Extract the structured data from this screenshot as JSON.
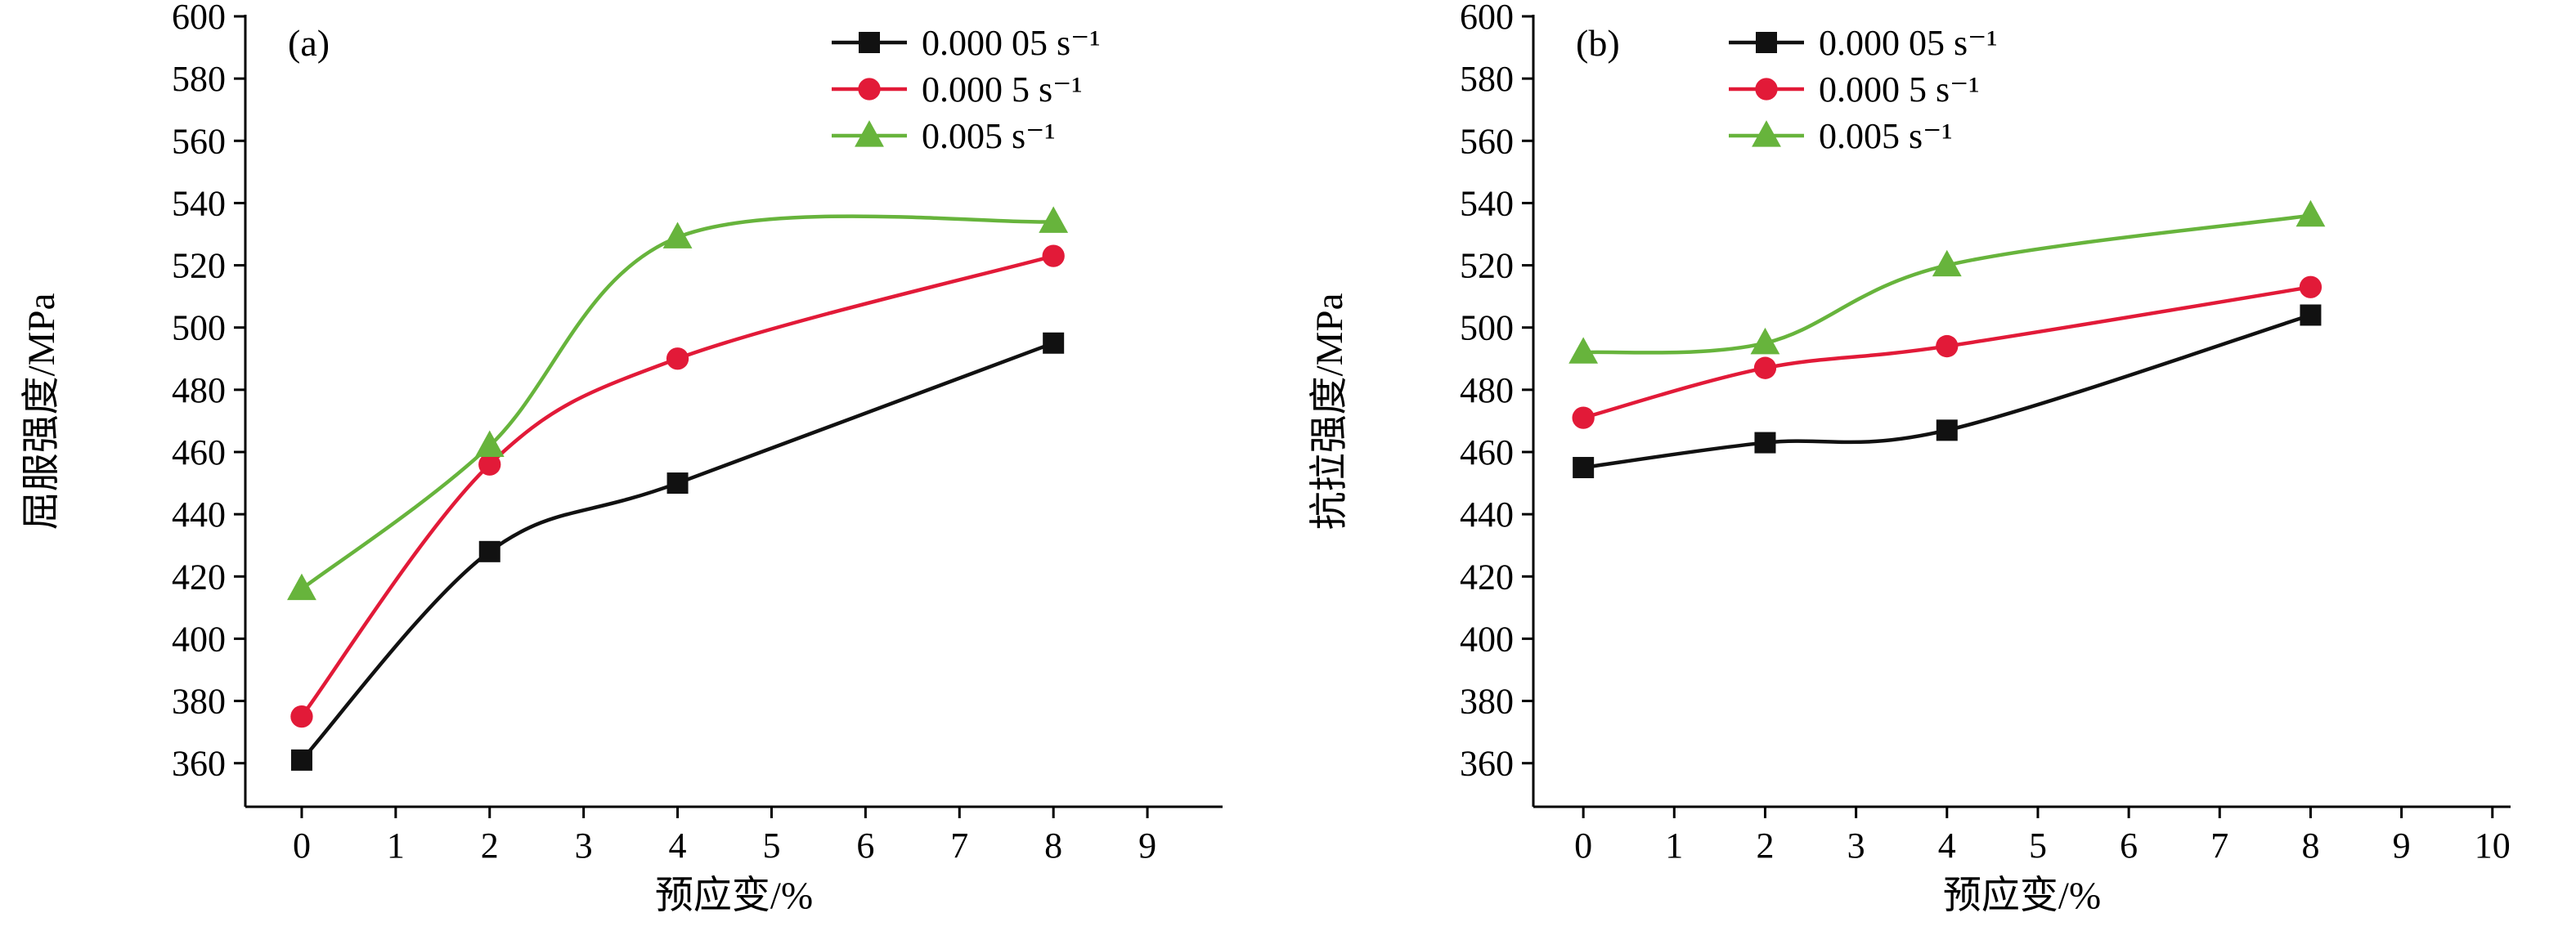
{
  "page": {
    "background": "#ffffff"
  },
  "chart_data": [
    {
      "type": "line",
      "panel_label": "(a)",
      "title": "",
      "xlabel": "预应变/%",
      "ylabel": "屈服强度/MPa",
      "x": [
        0,
        2,
        4,
        8
      ],
      "series": [
        {
          "name": "0.000 05 s⁻¹",
          "marker": "square",
          "color": "#111111",
          "values": [
            361,
            428,
            450,
            495
          ]
        },
        {
          "name": "0.000 5 s⁻¹",
          "marker": "circle",
          "color": "#e21a38",
          "values": [
            375,
            456,
            490,
            523
          ]
        },
        {
          "name": "0.005 s⁻¹",
          "marker": "triangle",
          "color": "#67b43c",
          "values": [
            416,
            462,
            529,
            534
          ]
        }
      ],
      "xlim": [
        -0.6,
        9.8
      ],
      "ylim": [
        346,
        600
      ],
      "xticks": [
        0,
        1,
        2,
        3,
        4,
        5,
        6,
        7,
        8,
        9
      ],
      "yticks": [
        360,
        380,
        400,
        420,
        440,
        460,
        480,
        500,
        520,
        540,
        560,
        580,
        600
      ],
      "grid": false,
      "legend_position": "top-right-inside",
      "legend": {
        "x": 0.6,
        "y": 0.0
      }
    },
    {
      "type": "line",
      "panel_label": "(b)",
      "title": "",
      "xlabel": "预应变/%",
      "ylabel": "抗拉强度/MPa",
      "x": [
        0,
        2,
        4,
        8
      ],
      "series": [
        {
          "name": "0.000 05 s⁻¹",
          "marker": "square",
          "color": "#111111",
          "values": [
            455,
            463,
            467,
            504
          ]
        },
        {
          "name": "0.000 5 s⁻¹",
          "marker": "circle",
          "color": "#e21a38",
          "values": [
            471,
            487,
            494,
            513
          ]
        },
        {
          "name": "0.005 s⁻¹",
          "marker": "triangle",
          "color": "#67b43c",
          "values": [
            492,
            495,
            520,
            536
          ]
        }
      ],
      "xlim": [
        -0.55,
        10.2
      ],
      "ylim": [
        346,
        600
      ],
      "xticks": [
        0,
        1,
        2,
        3,
        4,
        5,
        6,
        7,
        8,
        9,
        10
      ],
      "yticks": [
        360,
        380,
        400,
        420,
        440,
        460,
        480,
        500,
        520,
        540,
        560,
        580,
        600
      ],
      "grid": false,
      "legend_position": "top-left-inside",
      "legend": {
        "x": 0.2,
        "y": 0.0
      }
    }
  ]
}
